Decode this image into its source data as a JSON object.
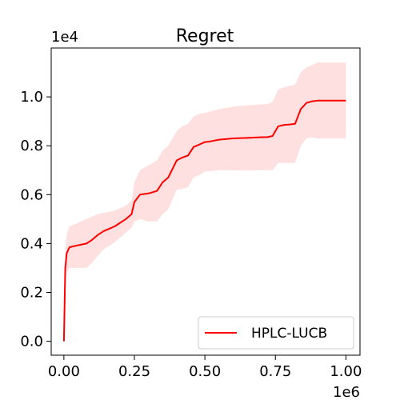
{
  "chart_data": {
    "type": "line",
    "title": "Regret",
    "xlabel": "",
    "ylabel": "",
    "x_offset_label": "1e6",
    "y_offset_label": "1e4",
    "xlim": [
      -0.045,
      1.05
    ],
    "ylim": [
      -0.057,
      1.2
    ],
    "x_ticks": [
      0.0,
      0.25,
      0.5,
      0.75,
      1.0
    ],
    "x_tick_labels": [
      "0.00",
      "0.25",
      "0.50",
      "0.75",
      "1.00"
    ],
    "y_ticks": [
      0.0,
      0.2,
      0.4,
      0.6,
      0.8,
      1.0
    ],
    "y_tick_labels": [
      "0.0",
      "0.2",
      "0.4",
      "0.6",
      "0.8",
      "1.0"
    ],
    "grid": false,
    "legend_position": "lower-right",
    "series": [
      {
        "name": "HPLC-LUCB",
        "color": "#ff0000",
        "band_color": "#ffe0e0",
        "x": [
          0.0,
          0.005,
          0.01,
          0.02,
          0.04,
          0.06,
          0.08,
          0.1,
          0.12,
          0.14,
          0.16,
          0.18,
          0.2,
          0.22,
          0.24,
          0.25,
          0.27,
          0.3,
          0.33,
          0.35,
          0.37,
          0.4,
          0.42,
          0.44,
          0.46,
          0.48,
          0.5,
          0.52,
          0.55,
          0.6,
          0.65,
          0.7,
          0.72,
          0.74,
          0.76,
          0.78,
          0.8,
          0.82,
          0.84,
          0.86,
          0.88,
          0.9,
          0.95,
          1.0
        ],
        "y": [
          0.0,
          0.3,
          0.36,
          0.385,
          0.39,
          0.395,
          0.4,
          0.415,
          0.435,
          0.45,
          0.46,
          0.47,
          0.485,
          0.5,
          0.52,
          0.57,
          0.6,
          0.605,
          0.615,
          0.65,
          0.67,
          0.74,
          0.752,
          0.76,
          0.795,
          0.805,
          0.815,
          0.818,
          0.825,
          0.83,
          0.832,
          0.835,
          0.835,
          0.84,
          0.88,
          0.885,
          0.887,
          0.89,
          0.95,
          0.975,
          0.982,
          0.985,
          0.985,
          0.985
        ],
        "band_upper": [
          0.0,
          0.36,
          0.44,
          0.47,
          0.48,
          0.49,
          0.5,
          0.51,
          0.52,
          0.525,
          0.53,
          0.535,
          0.545,
          0.555,
          0.575,
          0.65,
          0.7,
          0.72,
          0.74,
          0.78,
          0.8,
          0.86,
          0.88,
          0.89,
          0.92,
          0.93,
          0.935,
          0.94,
          0.95,
          0.96,
          0.965,
          0.97,
          0.97,
          0.98,
          1.03,
          1.04,
          1.045,
          1.05,
          1.1,
          1.12,
          1.13,
          1.14,
          1.14,
          1.14
        ]
      }
    ]
  }
}
